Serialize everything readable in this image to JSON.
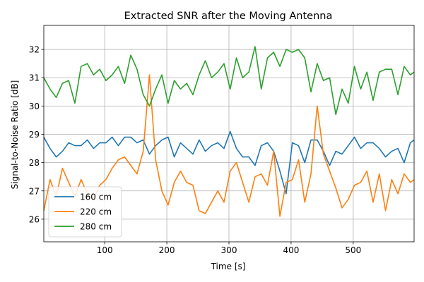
{
  "chart_data": {
    "type": "line",
    "title": "Extracted SNR after the Moving Antenna",
    "xlabel": "Time [s]",
    "ylabel": "Signal-to-Noise Ratio [dB]",
    "xlim": [
      2,
      598
    ],
    "ylim": [
      25.2,
      32.85
    ],
    "xticks": [
      100,
      200,
      300,
      400,
      500
    ],
    "yticks": [
      26,
      27,
      28,
      29,
      30,
      31,
      32
    ],
    "grid": true,
    "legend_position": "lower-left",
    "x": [
      2,
      12,
      22,
      32,
      42,
      52,
      62,
      72,
      82,
      92,
      102,
      112,
      122,
      132,
      142,
      152,
      162,
      172,
      182,
      192,
      202,
      212,
      222,
      232,
      242,
      252,
      262,
      272,
      282,
      292,
      302,
      312,
      322,
      332,
      342,
      352,
      362,
      372,
      382,
      392,
      402,
      412,
      422,
      432,
      442,
      452,
      462,
      472,
      482,
      492,
      502,
      512,
      522,
      532,
      542,
      552,
      562,
      572,
      582,
      592,
      598
    ],
    "series": [
      {
        "name": "160 cm",
        "color": "#1f77b4",
        "values": [
          28.9,
          28.5,
          28.2,
          28.4,
          28.7,
          28.6,
          28.6,
          28.8,
          28.5,
          28.7,
          28.7,
          28.9,
          28.6,
          28.9,
          28.9,
          28.7,
          28.8,
          28.3,
          28.6,
          28.8,
          28.9,
          28.2,
          28.7,
          28.5,
          28.3,
          28.8,
          28.4,
          28.6,
          28.7,
          28.5,
          29.1,
          28.5,
          28.2,
          28.2,
          27.9,
          28.6,
          28.7,
          28.4,
          27.7,
          26.9,
          28.7,
          28.6,
          28.0,
          28.8,
          28.8,
          28.4,
          27.9,
          28.4,
          28.3,
          28.6,
          28.9,
          28.5,
          28.7,
          28.7,
          28.5,
          28.2,
          28.4,
          28.5,
          28.0,
          28.7,
          28.8
        ]
      },
      {
        "name": "220 cm",
        "color": "#ff7f0e",
        "values": [
          26.3,
          27.4,
          26.8,
          27.8,
          27.3,
          26.8,
          27.4,
          26.9,
          26.7,
          27.2,
          27.4,
          27.8,
          28.1,
          28.2,
          27.9,
          27.6,
          28.4,
          31.1,
          28.1,
          27.0,
          26.5,
          27.3,
          27.7,
          27.3,
          27.2,
          26.3,
          26.2,
          26.6,
          27.0,
          26.6,
          27.7,
          28.0,
          27.3,
          26.6,
          27.5,
          27.6,
          27.2,
          28.4,
          26.1,
          27.3,
          27.4,
          28.1,
          26.6,
          27.6,
          30.0,
          28.3,
          27.7,
          27.1,
          26.4,
          26.7,
          27.2,
          27.3,
          27.7,
          26.6,
          27.6,
          26.3,
          27.4,
          26.9,
          27.6,
          27.3,
          27.4
        ]
      },
      {
        "name": "280 cm",
        "color": "#2ca02c",
        "values": [
          31.0,
          30.6,
          30.3,
          30.8,
          30.9,
          30.1,
          31.4,
          31.5,
          31.1,
          31.3,
          30.9,
          31.1,
          31.4,
          30.8,
          31.8,
          31.3,
          30.4,
          30.0,
          30.6,
          31.1,
          30.1,
          30.9,
          30.6,
          30.8,
          30.4,
          31.1,
          31.6,
          31.0,
          31.2,
          31.5,
          30.6,
          31.7,
          31.0,
          31.2,
          32.1,
          30.6,
          31.7,
          31.9,
          31.4,
          32.0,
          31.9,
          32.0,
          31.7,
          30.5,
          31.5,
          30.9,
          31.0,
          29.7,
          30.6,
          30.1,
          31.4,
          30.6,
          31.2,
          30.2,
          31.2,
          31.3,
          31.3,
          30.4,
          31.4,
          31.1,
          31.2
        ]
      }
    ]
  }
}
